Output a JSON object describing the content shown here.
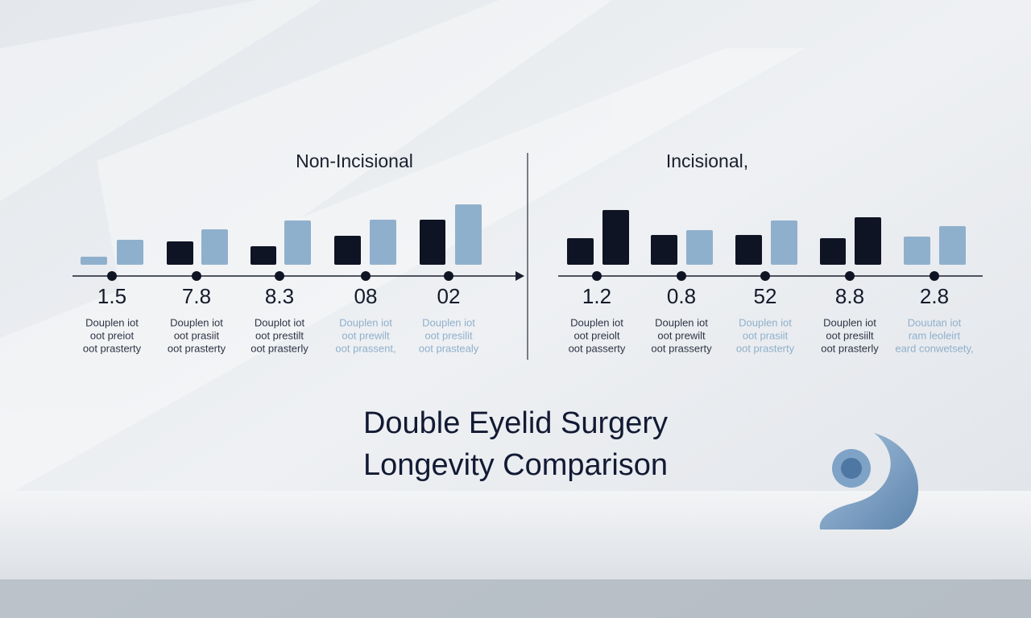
{
  "left": {
    "title": "Non-Incisional",
    "groups": [
      {
        "label": "1.5",
        "caption": [
          "Douplen iot",
          "oot preiot",
          "oot prasterty"
        ],
        "color": "#2e3444"
      },
      {
        "label": "7.8",
        "caption": [
          "Douplen iot",
          "oot prasiit",
          "oot prasterty"
        ],
        "color": "#2e3444"
      },
      {
        "label": "8.3",
        "caption": [
          "Douplot iot",
          "oot prestilt",
          "oot prasterly"
        ],
        "color": "#2e3444"
      },
      {
        "label": "08",
        "caption": [
          "Douplen iot",
          "oot prewilt",
          "oot prassent,"
        ],
        "color": "#8fb0cc"
      },
      {
        "label": "02",
        "caption": [
          "Douplen iot",
          "oot presilit",
          "oot prastealy"
        ],
        "color": "#8fb0cc"
      }
    ]
  },
  "right": {
    "title": "Incisional,",
    "groups": [
      {
        "label": "1.2",
        "caption": [
          "Douplen iot",
          "oot preiolt",
          "oot passerty"
        ],
        "color": "#2e3444"
      },
      {
        "label": "0.8",
        "caption": [
          "Douplen iot",
          "oot prewilt",
          "oot prasserty"
        ],
        "color": "#2e3444"
      },
      {
        "label": "52",
        "caption": [
          "Douplen iot",
          "oot prasiit",
          "oot prasterty"
        ],
        "color": "#8fb0cc"
      },
      {
        "label": "8.8",
        "caption": [
          "Douplen iot",
          "oot presiilt",
          "oot prasterly"
        ],
        "color": "#2e3444"
      },
      {
        "label": "2.8",
        "caption": [
          "Douutan iot",
          "ram leoleirt",
          "eard conwetsety,"
        ],
        "color": "#8fb0cc"
      }
    ]
  },
  "title": [
    "Double Eyelid Surgery",
    "Longevity Comparison"
  ]
}
